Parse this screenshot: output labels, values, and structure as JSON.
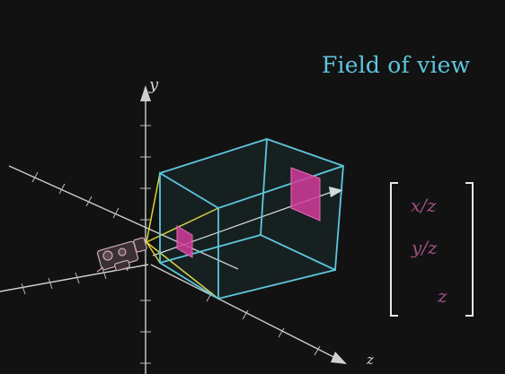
{
  "title": "Field of view",
  "axes": {
    "y": "y",
    "z": "z"
  },
  "vector": [
    "x/z",
    "y/z",
    "z"
  ],
  "colors": {
    "frustum": "#5ec6dd",
    "projection_lines": "#e0d23a",
    "image_plane": "#d23c9a",
    "vector_text": "#a24f86",
    "axes": "#cfcfcf"
  }
}
